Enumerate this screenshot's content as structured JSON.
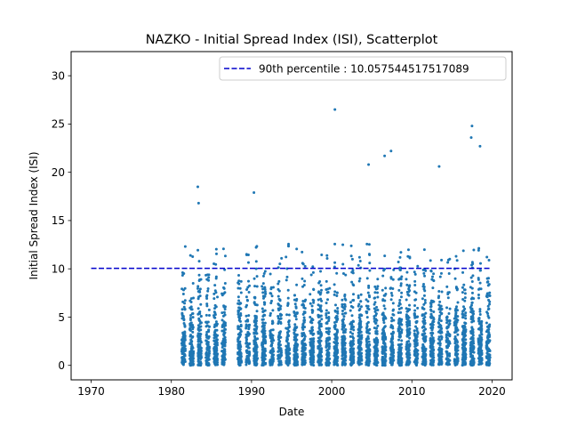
{
  "chart_data": {
    "type": "scatter",
    "title": "NAZKO - Initial Spread Index (ISI), Scatterplot",
    "xlabel": "Date",
    "ylabel": "Initial Spread Index (ISI)",
    "xlim": [
      1967.5,
      2022.5
    ],
    "ylim": [
      -1.5,
      32.5
    ],
    "xticks": [
      1970,
      1980,
      1990,
      2000,
      2010,
      2020
    ],
    "xtick_labels": [
      "1970",
      "1980",
      "1990",
      "2000",
      "2010",
      "2020"
    ],
    "yticks": [
      0,
      5,
      10,
      15,
      20,
      25,
      30
    ],
    "ytick_labels": [
      "0",
      "5",
      "10",
      "15",
      "20",
      "25",
      "30"
    ],
    "grid": false,
    "legend_position": "top-right",
    "series": [
      {
        "kind": "scatter",
        "color": "#1f77b4",
        "season_years": [
          1981,
          1982,
          1983,
          1984,
          1985,
          1986,
          1988,
          1989,
          1990,
          1991,
          1992,
          1993,
          1994,
          1995,
          1996,
          1997,
          1998,
          1999,
          2000,
          2001,
          2002,
          2003,
          2004,
          2005,
          2006,
          2007,
          2008,
          2009,
          2010,
          2011,
          2012,
          2013,
          2014,
          2015,
          2016,
          2017,
          2018,
          2019
        ],
        "notable_points": [
          {
            "x": 1983.3,
            "y": 18.5
          },
          {
            "x": 1983.4,
            "y": 16.8
          },
          {
            "x": 1990.3,
            "y": 17.9
          },
          {
            "x": 2000.4,
            "y": 26.5
          },
          {
            "x": 2004.6,
            "y": 20.8
          },
          {
            "x": 2006.6,
            "y": 21.7
          },
          {
            "x": 2007.4,
            "y": 22.2
          },
          {
            "x": 2013.4,
            "y": 20.6
          },
          {
            "x": 2017.5,
            "y": 24.8
          },
          {
            "x": 2017.4,
            "y": 23.6
          },
          {
            "x": 2018.5,
            "y": 22.7
          }
        ]
      },
      {
        "kind": "hline",
        "name": "90th percentile : 10.057544517517089",
        "color": "#0000cc",
        "dash": "dashed",
        "y": 10.057544517517089,
        "x_range": [
          1970,
          2019.7
        ]
      }
    ]
  }
}
